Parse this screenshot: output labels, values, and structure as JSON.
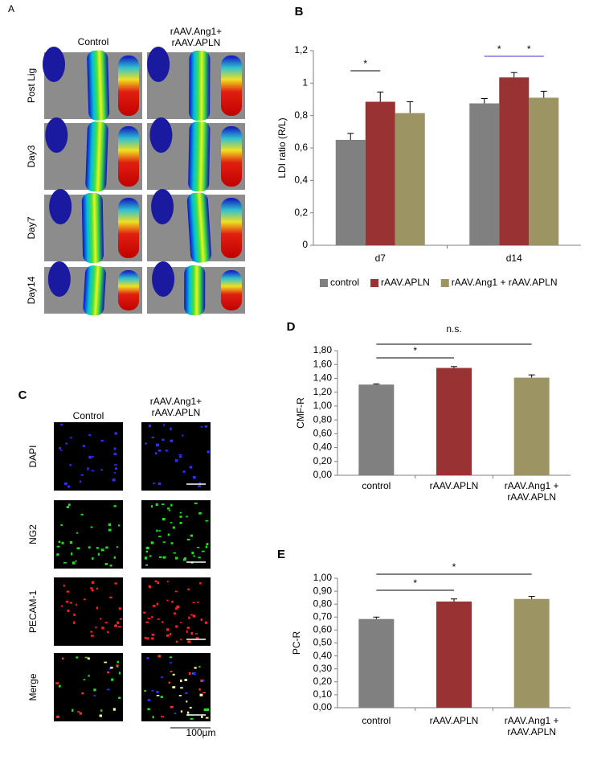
{
  "figure_panels": {
    "A": {
      "label": "A",
      "columns": [
        "Control",
        [
          "rAAV.Ang1+",
          "rAAV.APLN"
        ]
      ],
      "rows": [
        "Post Lig",
        "Day3",
        "Day7",
        "Day14"
      ]
    },
    "C": {
      "label": "C",
      "columns": [
        "Control",
        [
          "rAAV.Ang1+",
          "rAAV.APLN"
        ]
      ],
      "rows": [
        "DAPI",
        "NG2",
        "PECAM-1",
        "Merge"
      ],
      "scale_bar": "100µm"
    }
  },
  "chart_data": [
    {
      "type": "bar",
      "panel": "B",
      "y_label": "LDI ratio (R/L)",
      "categories": [
        "d7",
        "d14"
      ],
      "series": [
        {
          "name": "control",
          "color": "#808080",
          "values": [
            0.65,
            0.875
          ],
          "errors": [
            0.04,
            0.03
          ]
        },
        {
          "name": "rAAV.APLN",
          "color": "#993333",
          "values": [
            0.885,
            1.035
          ],
          "errors": [
            0.06,
            0.03
          ]
        },
        {
          "name": "rAAV.Ang1 + rAAV.APLN",
          "color": "#9c9463",
          "values": [
            0.815,
            0.91
          ],
          "errors": [
            0.07,
            0.04
          ]
        }
      ],
      "ylim": [
        0,
        1.2
      ],
      "yticks": [
        0,
        {
          "value": 0.2,
          "label": "0,2"
        },
        {
          "value": 0.4,
          "label": "0,4"
        },
        {
          "value": 0.6,
          "label": "0,6"
        },
        {
          "value": 0.8,
          "label": "0,8"
        },
        1,
        {
          "value": 1.2,
          "label": "1,2"
        }
      ],
      "annotations": [
        "*",
        "*",
        "*"
      ],
      "legend": "bottom"
    },
    {
      "type": "bar",
      "panel": "D",
      "y_label": "CMF-R",
      "categories": [
        "control",
        "rAAV.APLN",
        [
          "rAAV.Ang1 +",
          "rAAV.APLN"
        ]
      ],
      "colors": [
        "#808080",
        "#993333",
        "#9c9463"
      ],
      "values": [
        1.31,
        1.55,
        1.41
      ],
      "errors": [
        0.01,
        0.02,
        0.04
      ],
      "ylim": [
        0,
        1.8
      ],
      "yticks": [
        {
          "value": 0,
          "label": "0,00"
        },
        {
          "value": 0.2,
          "label": "0,20"
        },
        {
          "value": 0.4,
          "label": "0,40"
        },
        {
          "value": 0.6,
          "label": "0,60"
        },
        {
          "value": 0.8,
          "label": "0,80"
        },
        {
          "value": 1.0,
          "label": "1,00"
        },
        {
          "value": 1.2,
          "label": "1,20"
        },
        {
          "value": 1.4,
          "label": "1,40"
        },
        {
          "value": 1.6,
          "label": "1,60"
        },
        {
          "value": 1.8,
          "label": "1,80"
        }
      ],
      "annotations": [
        "n.s.",
        "*"
      ]
    },
    {
      "type": "bar",
      "panel": "E",
      "y_label": "PC-R",
      "categories": [
        "control",
        "rAAV.APLN",
        [
          "rAAV.Ang1 +",
          "rAAV.APLN"
        ]
      ],
      "colors": [
        "#808080",
        "#993333",
        "#9c9463"
      ],
      "values": [
        0.685,
        0.82,
        0.84
      ],
      "errors": [
        0.015,
        0.02,
        0.02
      ],
      "ylim": [
        0,
        1.0
      ],
      "yticks": [
        {
          "value": 0,
          "label": "0,00"
        },
        {
          "value": 0.1,
          "label": "0,10"
        },
        {
          "value": 0.2,
          "label": "0,20"
        },
        {
          "value": 0.3,
          "label": "0,30"
        },
        {
          "value": 0.4,
          "label": "0,40"
        },
        {
          "value": 0.5,
          "label": "0,50"
        },
        {
          "value": 0.6,
          "label": "0,60"
        },
        {
          "value": 0.7,
          "label": "0,70"
        },
        {
          "value": 0.8,
          "label": "0,80"
        },
        {
          "value": 0.9,
          "label": "0,90"
        },
        {
          "value": 1.0,
          "label": "1,00"
        }
      ],
      "annotations": [
        "*",
        "*"
      ]
    }
  ]
}
